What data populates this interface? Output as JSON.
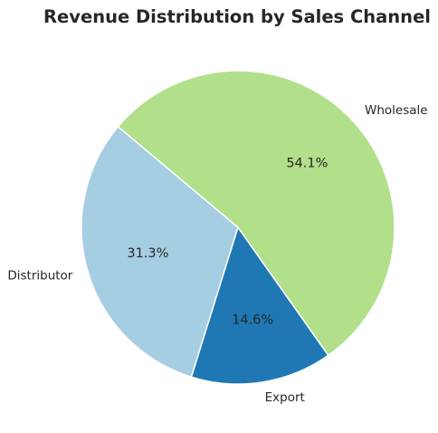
{
  "chart_data": {
    "type": "pie",
    "title": "Revenue Distribution by Sales Channel",
    "slices": [
      {
        "label": "Distributor",
        "value": 31.3,
        "percent_label": "31.3%",
        "color": "#a6cee3"
      },
      {
        "label": "Export",
        "value": 14.6,
        "percent_label": "14.6%",
        "color": "#1f78b4"
      },
      {
        "label": "Wholesale",
        "value": 54.1,
        "percent_label": "54.1%",
        "color": "#b2df8a"
      }
    ],
    "start_angle_deg": 140,
    "direction": "counterclockwise",
    "legend": "none"
  }
}
